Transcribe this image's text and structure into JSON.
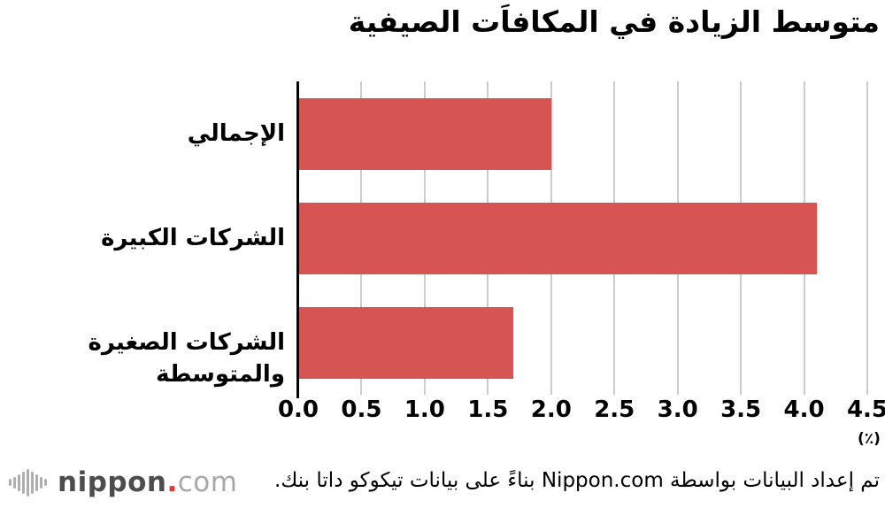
{
  "title": "متوسط الزيادة في المكافاَت الصيفية",
  "chart_data": {
    "type": "bar",
    "orientation": "horizontal",
    "title": "متوسط الزيادة في المكافاَت الصيفية",
    "categories": [
      "الإجمالي",
      "الشركات الكبيرة",
      "الشركات الصغيرة والمتوسطة"
    ],
    "values": [
      2.0,
      4.1,
      1.7
    ],
    "xlim": [
      0,
      4.5
    ],
    "xticks": [
      0.0,
      0.5,
      1.0,
      1.5,
      2.0,
      2.5,
      3.0,
      3.5,
      4.0,
      4.5
    ],
    "xtick_labels": [
      "0.0",
      "0.5",
      "1.0",
      "1.5",
      "2.0",
      "2.5",
      "3.0",
      "3.5",
      "4.0",
      "4.5"
    ],
    "unit_label": "(٪)",
    "xlabel": "",
    "ylabel": "",
    "grid": true,
    "legend": false,
    "bar_color": "#d65552",
    "gridline_color": "#cccccc",
    "axis_color": "#000000"
  },
  "footer": {
    "attribution": "تم إعداد البيانات بواسطة Nippon.com بناءً على بيانات تيكوكو داتا بنك.",
    "logo": {
      "name": "nippon",
      "dot": ".",
      "com": "com",
      "dot_color": "#e8362a",
      "wave_bar_heights": [
        8,
        13,
        19,
        25,
        31,
        25,
        19,
        13,
        8
      ]
    }
  }
}
